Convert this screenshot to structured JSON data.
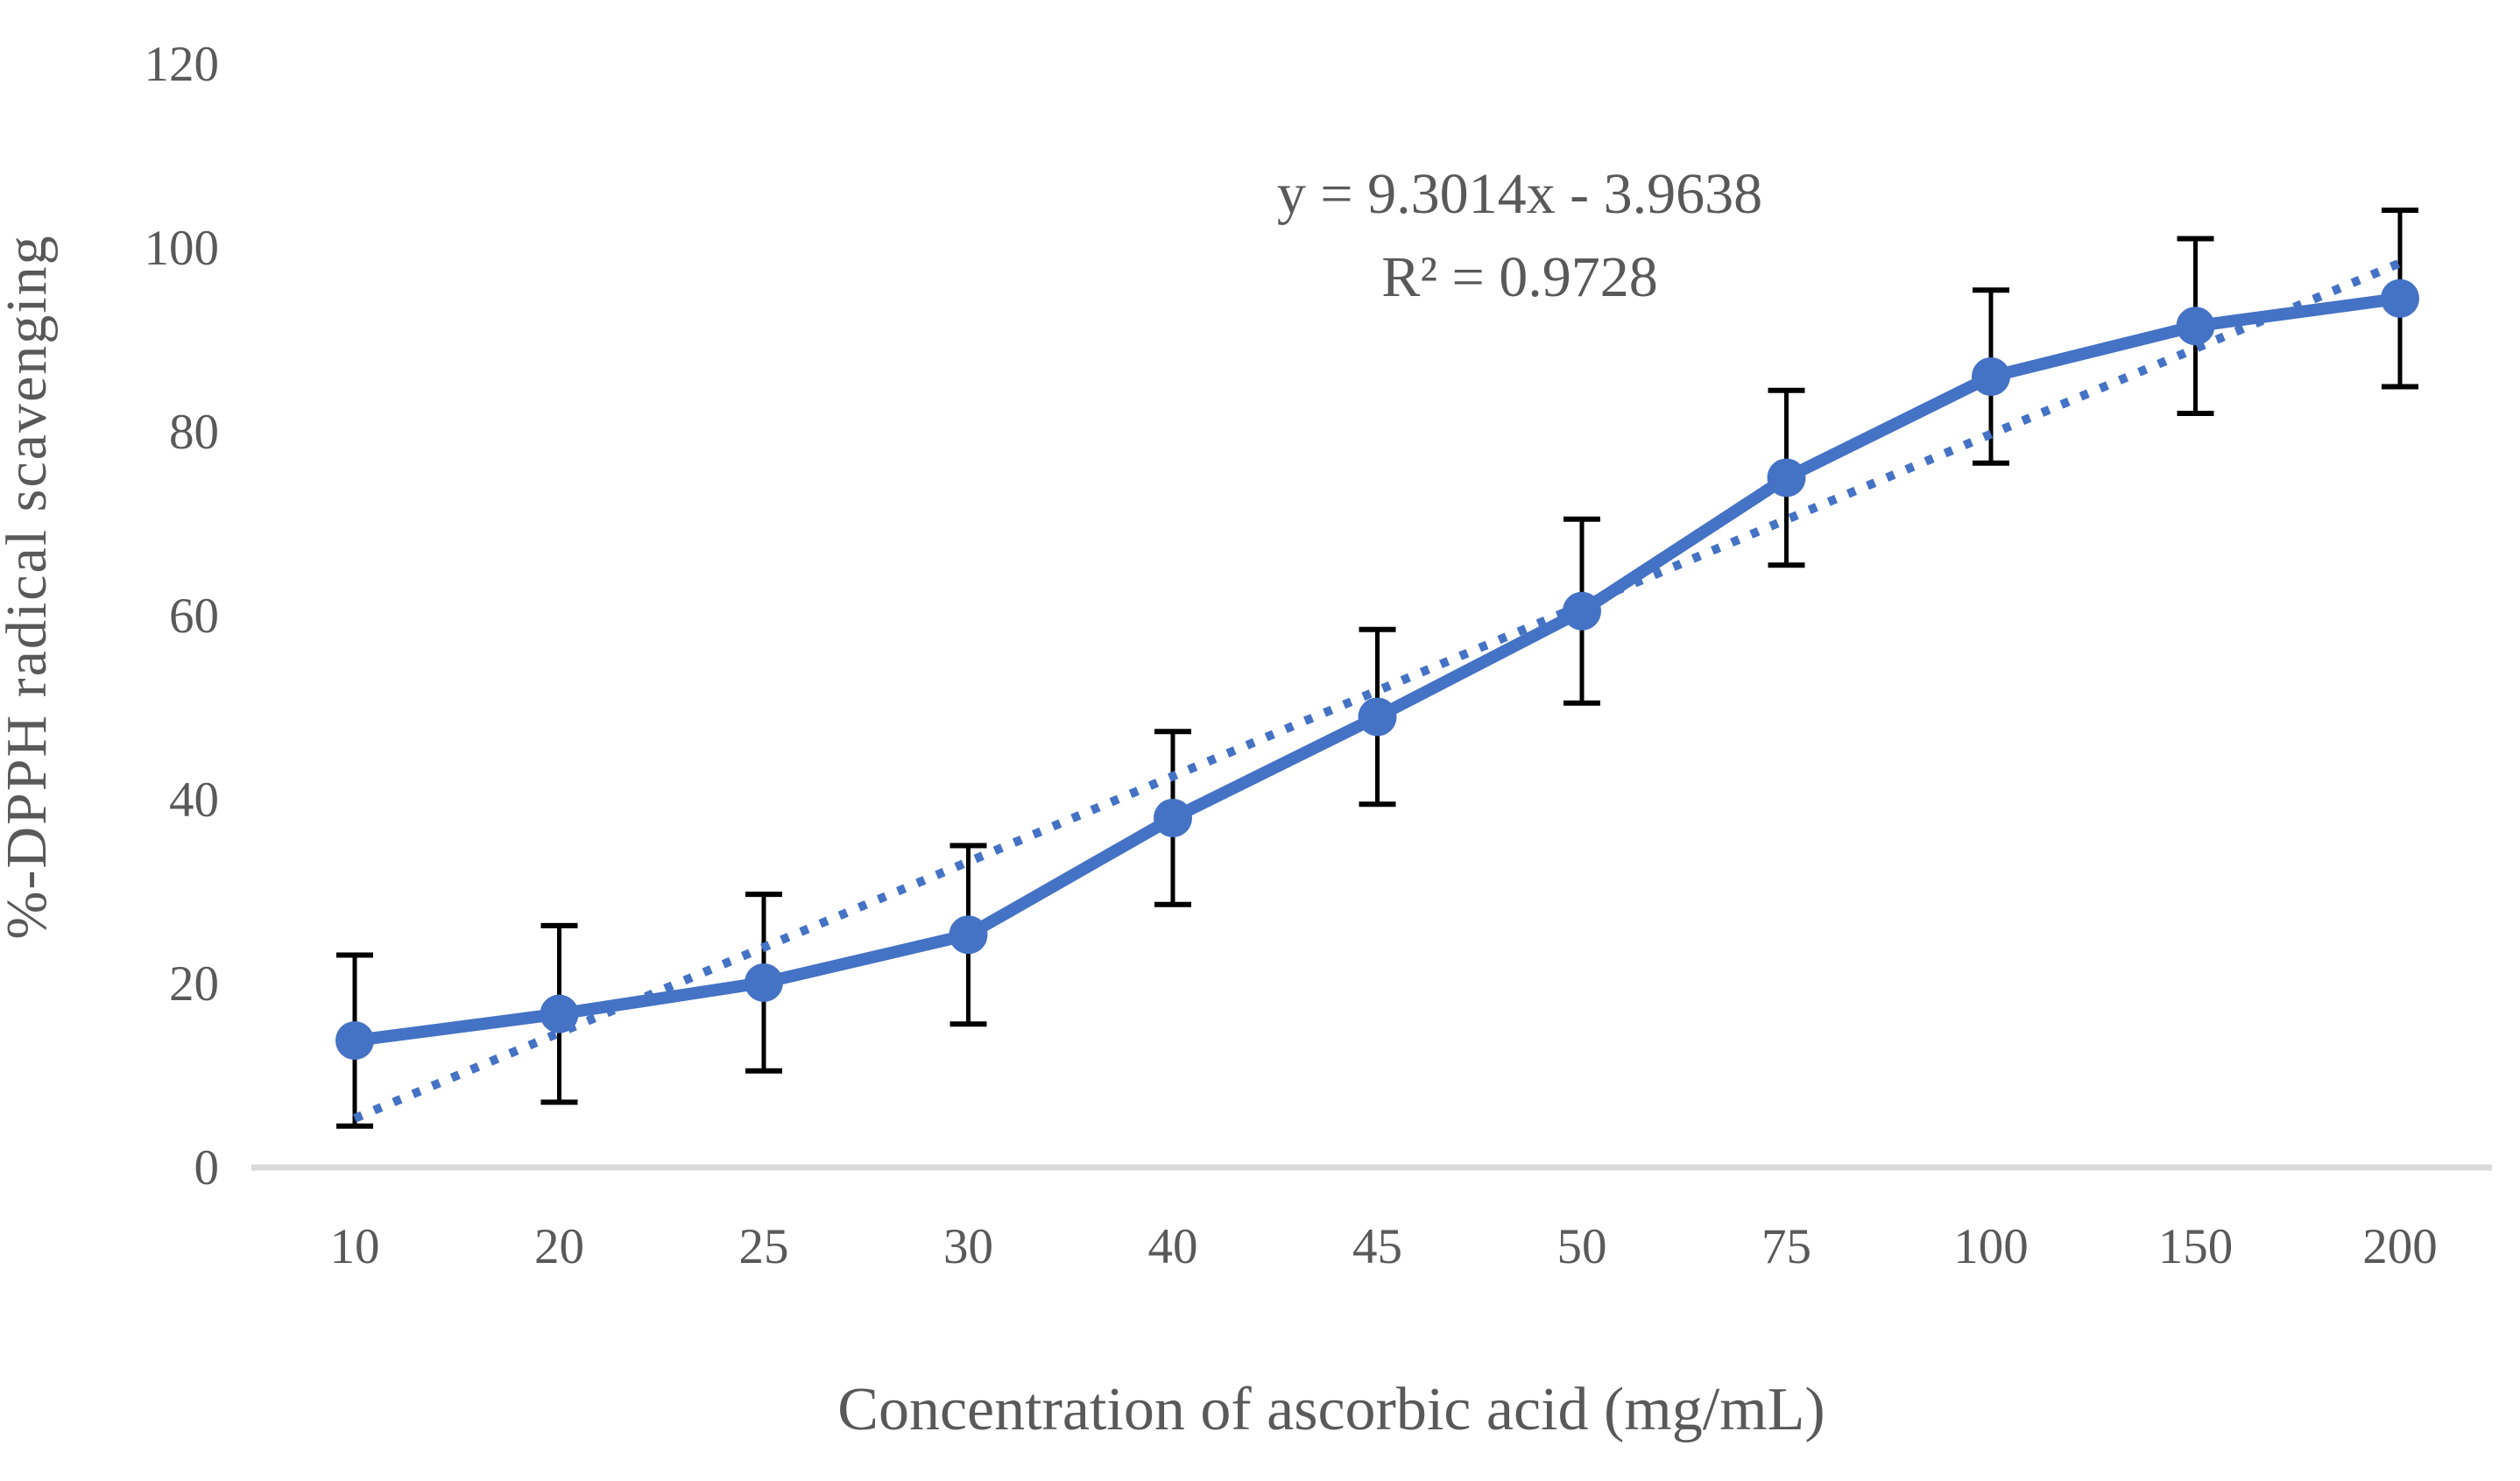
{
  "chart_data": {
    "type": "line",
    "title": "",
    "categories": [
      "10",
      "20",
      "25",
      "30",
      "40",
      "45",
      "50",
      "75",
      "100",
      "150",
      "200"
    ],
    "x_axis": {
      "label": "Concentration of ascorbic acid (mg/mL)"
    },
    "y_axis": {
      "label": "%-DPPH radical scavenging",
      "min": 0,
      "max": 120,
      "ticks": [
        0,
        20,
        40,
        60,
        80,
        100,
        120
      ]
    },
    "series": [
      {
        "marker": "circle",
        "values": [
          13.8,
          16.7,
          20.1,
          25.3,
          38.0,
          49.0,
          60.5,
          75.0,
          86.0,
          91.5,
          94.5
        ],
        "error_bars": [
          9.3,
          9.6,
          9.6,
          9.7,
          9.4,
          9.5,
          10.0,
          9.5,
          9.4,
          9.5,
          9.6
        ]
      }
    ],
    "trendline": {
      "style": "dotted",
      "equation": "y = 9.3014x - 3.9638",
      "r_squared_label": "R² = 0.9728",
      "slope": 9.3014,
      "intercept": -3.9638
    },
    "legend": false,
    "grid": false,
    "colors": {
      "series": "#4472C4",
      "trendline": "#4472C4",
      "error_bar": "#000000",
      "axis_line": "#D9D9D9",
      "text": "#595959"
    }
  }
}
